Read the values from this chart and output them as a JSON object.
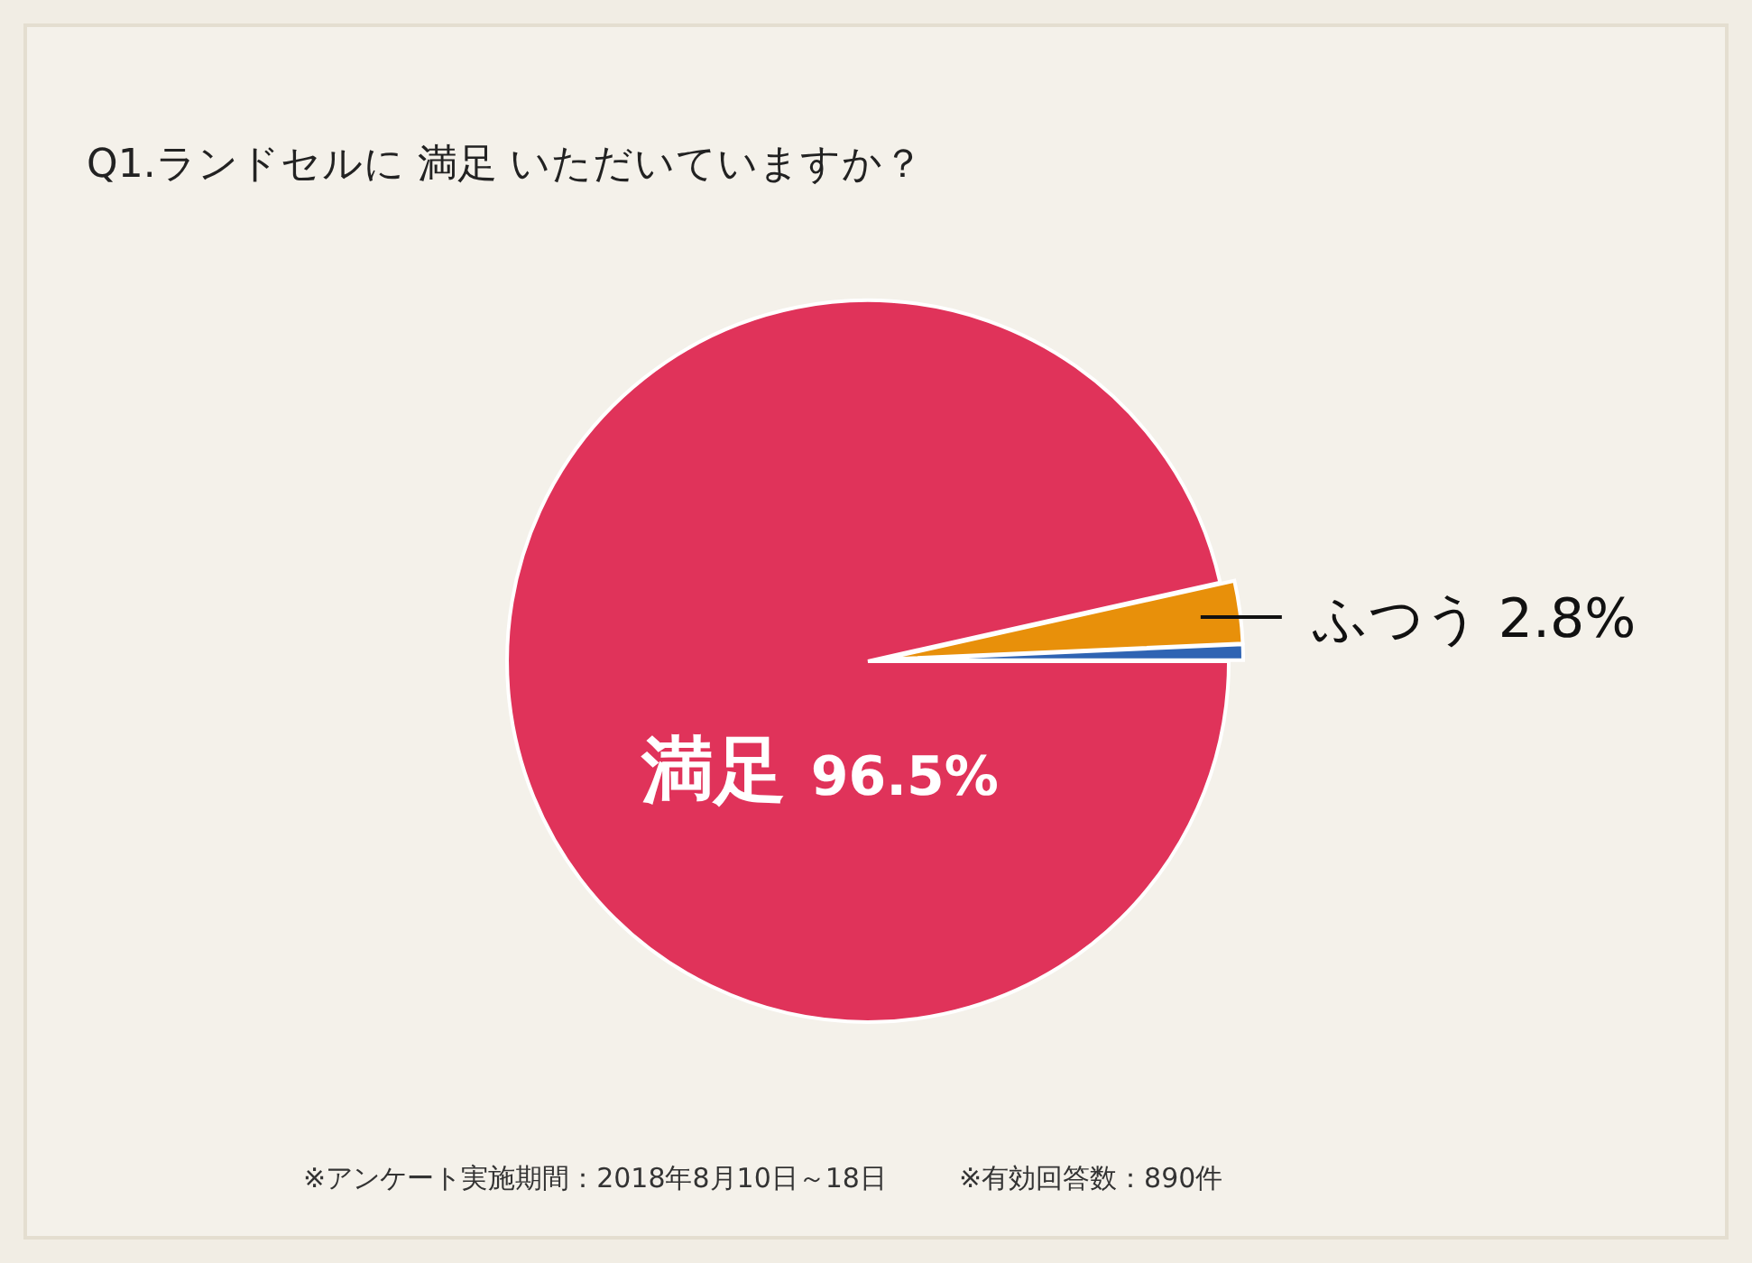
{
  "chart_data": {
    "type": "pie",
    "title": "Q1.ランドセルに 満足 いただいていますか？",
    "categories": [
      "満足",
      "ふつう",
      null
    ],
    "values": [
      96.5,
      2.8,
      0.7
    ],
    "value_labels": [
      "96.5%",
      "2.8%",
      null
    ],
    "colors": [
      "#e0335a",
      "#e8900a",
      "#2f64b3"
    ],
    "annotations": [
      "※アンケート実施期間：2018年8月10日～18日",
      "※有効回答数：890件"
    ]
  }
}
